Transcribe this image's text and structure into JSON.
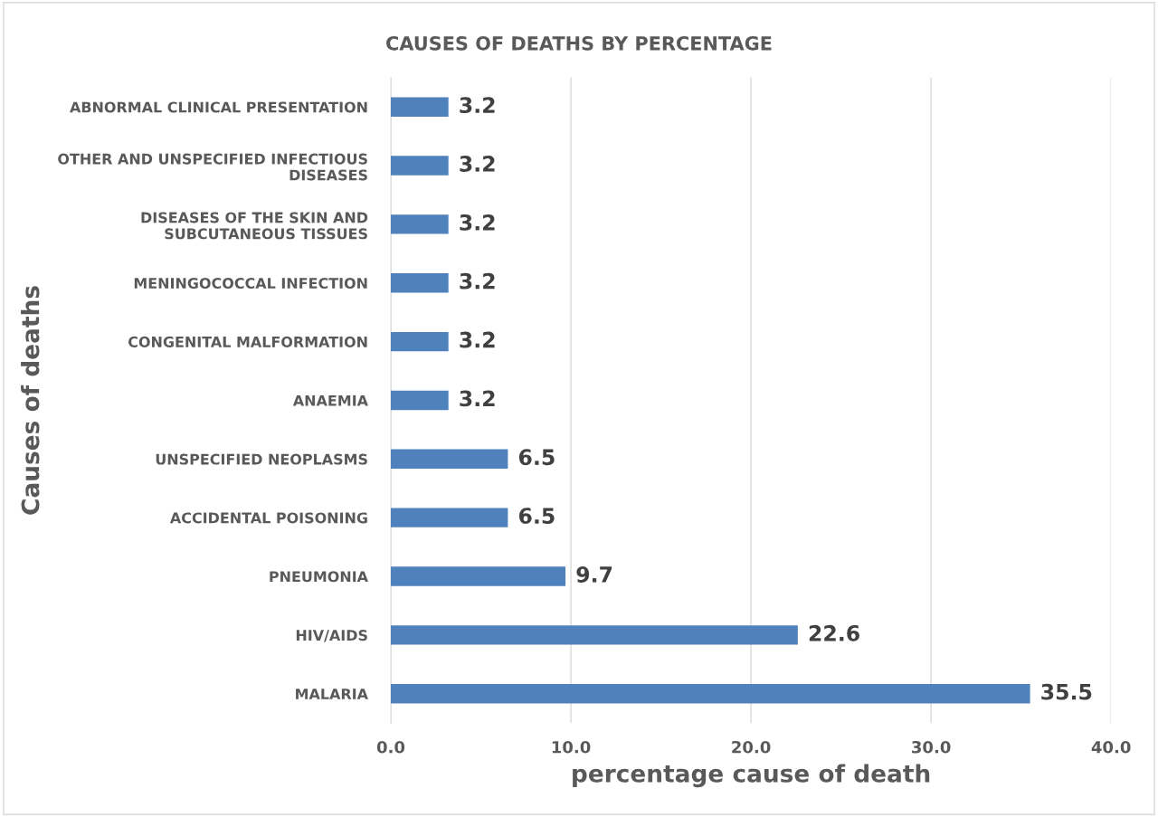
{
  "chart_data": {
    "type": "bar",
    "orientation": "horizontal",
    "title": "CAUSES OF DEATHS BY PERCENTAGE",
    "xlabel": "percentage cause of death",
    "ylabel": "Causes of deaths",
    "categories": [
      "ABNORMAL CLINICAL PRESENTATION",
      "OTHER AND UNSPECIFIED INFECTIOUS\nDISEASES",
      "DISEASES OF THE SKIN AND\nSUBCUTANEOUS TISSUES",
      "MENINGOCOCCAL INFECTION",
      "CONGENITAL MALFORMATION",
      "ANAEMIA",
      "UNSPECIFIED NEOPLASMS",
      "ACCIDENTAL POISONING",
      "PNEUMONIA",
      "HIV/AIDS",
      "MALARIA"
    ],
    "values": [
      3.2,
      3.2,
      3.2,
      3.2,
      3.2,
      3.2,
      6.5,
      6.5,
      9.7,
      22.6,
      35.5
    ],
    "color": "#4f81bd",
    "data_labels": true,
    "grid": "x",
    "xlim": [
      0,
      40
    ],
    "xticks": [
      {
        "value": 0,
        "label": "0.0"
      },
      {
        "value": 10,
        "label": "10.0"
      },
      {
        "value": 20,
        "label": "20.0"
      },
      {
        "value": 30,
        "label": "30.0"
      },
      {
        "value": 40,
        "label": "40.0"
      }
    ]
  }
}
